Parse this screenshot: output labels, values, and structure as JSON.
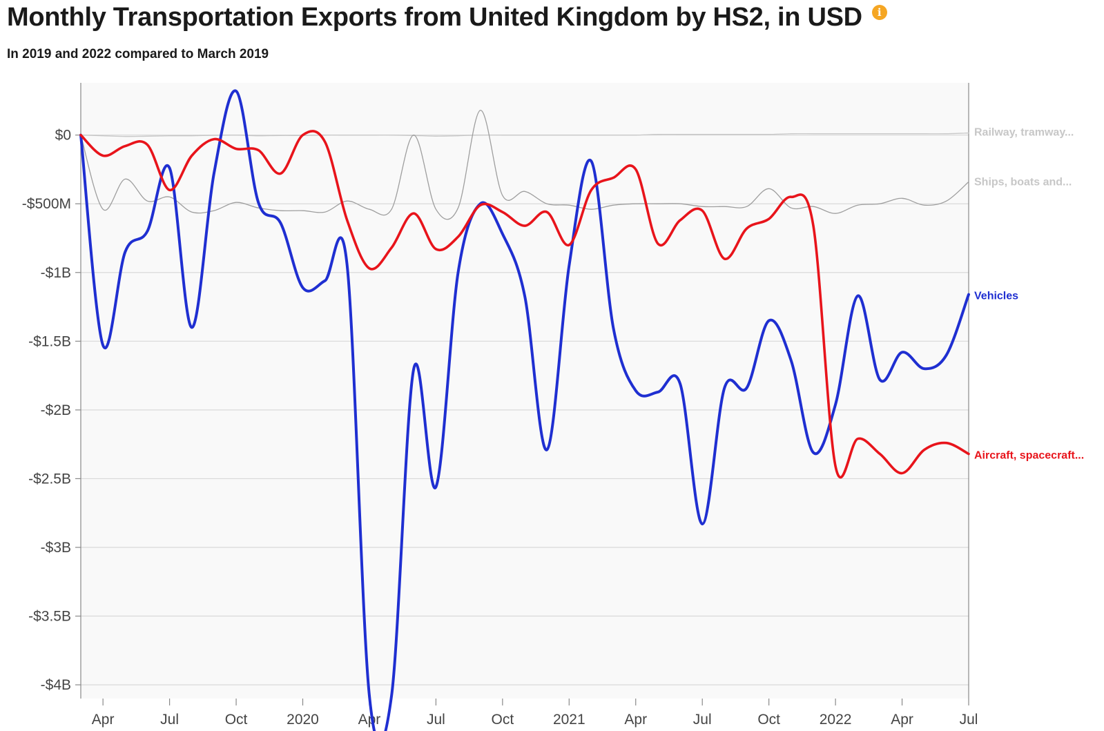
{
  "header": {
    "title": "Monthly Transportation Exports from United Kingdom by HS2, in USD",
    "subtitle": "In 2019 and 2022 compared to March 2019",
    "info_icon": "info-icon",
    "info_glyph": "i",
    "info_color": "#f5a623"
  },
  "chart_data": {
    "type": "line",
    "title": "Monthly Transportation Exports from United Kingdom by HS2, in USD",
    "subtitle": "In 2019 and 2022 compared to March 2019",
    "x": [
      "2019-03",
      "2019-04",
      "2019-05",
      "2019-06",
      "2019-07",
      "2019-08",
      "2019-09",
      "2019-10",
      "2019-11",
      "2019-12",
      "2020-01",
      "2020-02",
      "2020-03",
      "2020-04",
      "2020-05",
      "2020-06",
      "2020-07",
      "2020-08",
      "2020-09",
      "2020-10",
      "2020-11",
      "2020-12",
      "2021-01",
      "2021-02",
      "2021-03",
      "2021-04",
      "2021-05",
      "2021-06",
      "2021-07",
      "2021-08",
      "2021-09",
      "2021-10",
      "2021-11",
      "2021-12",
      "2022-01",
      "2022-02",
      "2022-03",
      "2022-04",
      "2022-05",
      "2022-06",
      "2022-07"
    ],
    "x_ticks": [
      "Apr",
      "Jul",
      "Oct",
      "2020",
      "Apr",
      "Jul",
      "Oct",
      "2021",
      "Apr",
      "Jul",
      "Oct",
      "2022",
      "Apr",
      "Jul"
    ],
    "x_tick_dates": [
      "2019-04",
      "2019-07",
      "2019-10",
      "2020-01",
      "2020-04",
      "2020-07",
      "2020-10",
      "2021-01",
      "2021-04",
      "2021-07",
      "2021-10",
      "2022-01",
      "2022-04",
      "2022-07"
    ],
    "ylim": [
      -4100000000,
      380000000
    ],
    "y_ticks": [
      0,
      -500000000,
      -1000000000,
      -1500000000,
      -2000000000,
      -2500000000,
      -3000000000,
      -3500000000,
      -4000000000
    ],
    "y_tick_labels": [
      "$0",
      "-$500M",
      "-$1B",
      "-$1.5B",
      "-$2B",
      "-$2.5B",
      "-$3B",
      "-$3.5B",
      "-$4B"
    ],
    "grid": true,
    "series": [
      {
        "name": "Railway, tramway...",
        "color": "#c7c7c7",
        "values": [
          0,
          -5000000,
          -10000000,
          -8000000,
          -5000000,
          -5000000,
          -2000000,
          0,
          -5000000,
          -3000000,
          -3000000,
          0,
          0,
          0,
          0,
          -3000000,
          -8000000,
          -5000000,
          0,
          0,
          0,
          0,
          0,
          0,
          0,
          0,
          5000000,
          5000000,
          5000000,
          5000000,
          5000000,
          5000000,
          10000000,
          10000000,
          10000000,
          10000000,
          10000000,
          10000000,
          10000000,
          10000000,
          15000000
        ]
      },
      {
        "name": "Ships, boats and...",
        "color": "#9e9e9e",
        "values": [
          0,
          -540000000,
          -320000000,
          -480000000,
          -450000000,
          -560000000,
          -550000000,
          -490000000,
          -530000000,
          -550000000,
          -550000000,
          -560000000,
          -480000000,
          -540000000,
          -540000000,
          0,
          -540000000,
          -530000000,
          180000000,
          -440000000,
          -410000000,
          -500000000,
          -510000000,
          -540000000,
          -510000000,
          -500000000,
          -500000000,
          -500000000,
          -520000000,
          -520000000,
          -520000000,
          -390000000,
          -530000000,
          -520000000,
          -570000000,
          -510000000,
          -500000000,
          -460000000,
          -510000000,
          -480000000,
          -340000000
        ]
      },
      {
        "name": "Vehicles",
        "color": "#1f2fd1",
        "values": [
          0,
          -1530000000,
          -850000000,
          -700000000,
          -240000000,
          -1400000000,
          -280000000,
          320000000,
          -490000000,
          -640000000,
          -1110000000,
          -1060000000,
          -950000000,
          -4080000000,
          -4080000000,
          -1700000000,
          -2560000000,
          -1000000000,
          -500000000,
          -720000000,
          -1170000000,
          -2290000000,
          -950000000,
          -190000000,
          -1410000000,
          -1860000000,
          -1870000000,
          -1810000000,
          -2830000000,
          -1840000000,
          -1840000000,
          -1350000000,
          -1640000000,
          -2310000000,
          -1960000000,
          -1170000000,
          -1780000000,
          -1580000000,
          -1700000000,
          -1600000000,
          -1160000000
        ]
      },
      {
        "name": "Aircraft, spacecraft...",
        "color": "#e8141b",
        "values": [
          0,
          -150000000,
          -80000000,
          -70000000,
          -400000000,
          -150000000,
          -30000000,
          -100000000,
          -110000000,
          -280000000,
          0,
          -50000000,
          -620000000,
          -970000000,
          -820000000,
          -570000000,
          -830000000,
          -740000000,
          -510000000,
          -560000000,
          -660000000,
          -560000000,
          -800000000,
          -400000000,
          -310000000,
          -250000000,
          -790000000,
          -620000000,
          -550000000,
          -900000000,
          -680000000,
          -610000000,
          -450000000,
          -660000000,
          -2410000000,
          -2210000000,
          -2320000000,
          -2460000000,
          -2290000000,
          -2240000000,
          -2320000000
        ]
      }
    ],
    "end_labels": [
      {
        "text": "Railway, tramway...",
        "series": "Railway, tramway...",
        "color": "#c7c7c7"
      },
      {
        "text": "Ships, boats and...",
        "series": "Ships, boats and...",
        "color": "#c7c7c7"
      },
      {
        "text": "Vehicles",
        "series": "Vehicles",
        "color": "#1f2fd1"
      },
      {
        "text": "Aircraft, spacecraft...",
        "series": "Aircraft, spacecraft...",
        "color": "#e8141b"
      }
    ],
    "legend": "end-of-line labels (right)"
  }
}
